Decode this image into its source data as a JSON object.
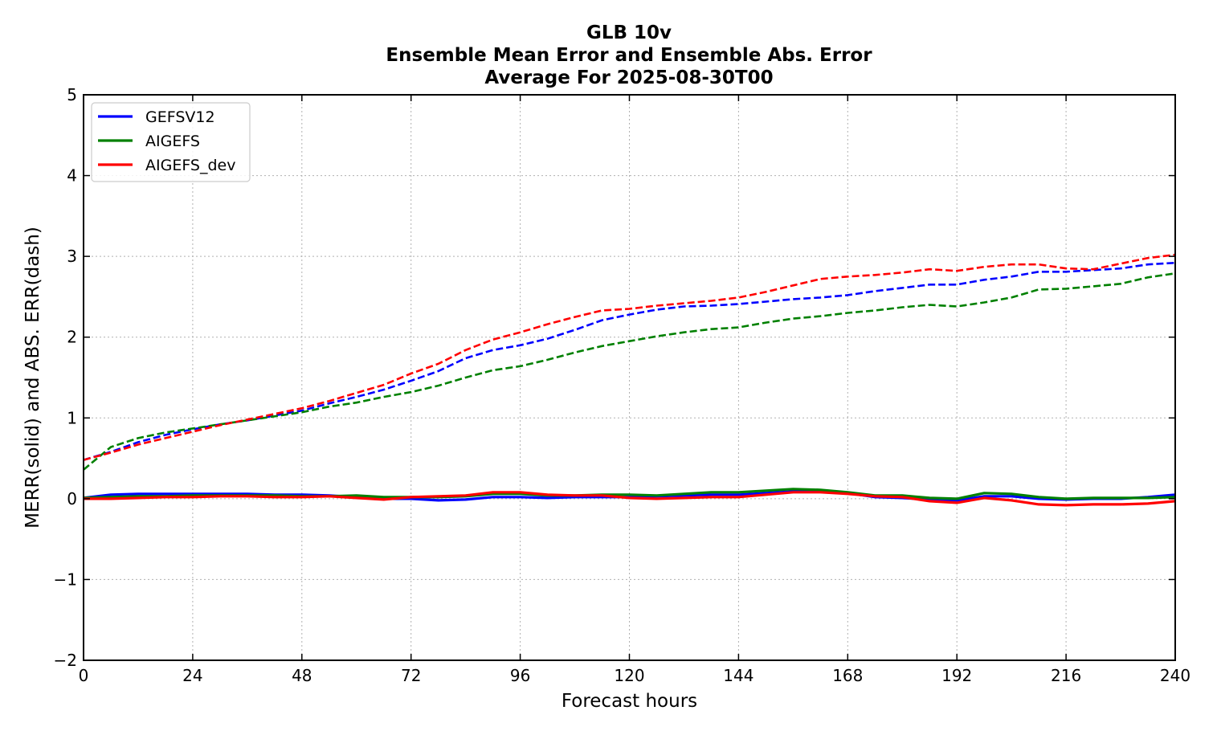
{
  "chart_data": {
    "type": "line",
    "title": [
      "GLB 10v",
      "Ensemble Mean Error and Ensemble Abs. Error",
      "Average For 2025-08-30T00"
    ],
    "xlabel": "Forecast hours",
    "ylabel": "MERR(solid) and ABS. ERR(dash)",
    "xlim": [
      0,
      240
    ],
    "ylim": [
      -2,
      5
    ],
    "xticks": [
      0,
      24,
      48,
      72,
      96,
      120,
      144,
      168,
      192,
      216,
      240
    ],
    "yticks": [
      -2,
      -1,
      0,
      1,
      2,
      3,
      4,
      5
    ],
    "ytick_labels": [
      "−2",
      "−1",
      "0",
      "1",
      "2",
      "3",
      "4",
      "5"
    ],
    "grid": true,
    "legend_position": "top-left",
    "x": [
      0,
      6,
      12,
      18,
      24,
      30,
      36,
      42,
      48,
      54,
      60,
      66,
      72,
      78,
      84,
      90,
      96,
      102,
      108,
      114,
      120,
      126,
      132,
      138,
      144,
      150,
      156,
      162,
      168,
      174,
      180,
      186,
      192,
      198,
      204,
      210,
      216,
      222,
      228,
      234,
      240
    ],
    "series": [
      {
        "name": "GEFSV12",
        "color": "#0000ff",
        "merr": [
          0.01,
          0.05,
          0.06,
          0.06,
          0.06,
          0.06,
          0.06,
          0.05,
          0.05,
          0.04,
          0.02,
          0.0,
          0.0,
          -0.02,
          -0.01,
          0.02,
          0.02,
          0.01,
          0.02,
          0.02,
          0.02,
          0.03,
          0.04,
          0.05,
          0.05,
          0.07,
          0.09,
          0.09,
          0.07,
          0.02,
          0.01,
          -0.01,
          -0.02,
          0.03,
          0.03,
          0.0,
          -0.01,
          0.0,
          0.0,
          0.02,
          0.05
        ],
        "abs_err": [
          0.48,
          0.58,
          0.7,
          0.79,
          0.86,
          0.92,
          0.97,
          1.03,
          1.09,
          1.18,
          1.26,
          1.35,
          1.46,
          1.58,
          1.74,
          1.84,
          1.9,
          1.98,
          2.09,
          2.21,
          2.28,
          2.34,
          2.38,
          2.39,
          2.41,
          2.44,
          2.47,
          2.49,
          2.52,
          2.57,
          2.61,
          2.65,
          2.65,
          2.71,
          2.75,
          2.81,
          2.81,
          2.83,
          2.85,
          2.9,
          2.92
        ]
      },
      {
        "name": "AIGEFS",
        "color": "#008000",
        "merr": [
          0.01,
          0.02,
          0.03,
          0.03,
          0.04,
          0.04,
          0.04,
          0.04,
          0.03,
          0.03,
          0.04,
          0.02,
          0.02,
          0.02,
          0.03,
          0.06,
          0.06,
          0.04,
          0.04,
          0.05,
          0.05,
          0.04,
          0.06,
          0.08,
          0.08,
          0.1,
          0.12,
          0.11,
          0.08,
          0.04,
          0.04,
          0.01,
          0.0,
          0.07,
          0.06,
          0.02,
          0.0,
          0.01,
          0.01,
          0.01,
          0.02
        ],
        "abs_err": [
          0.36,
          0.64,
          0.75,
          0.82,
          0.87,
          0.92,
          0.97,
          1.02,
          1.07,
          1.14,
          1.19,
          1.26,
          1.32,
          1.4,
          1.5,
          1.59,
          1.64,
          1.72,
          1.81,
          1.89,
          1.95,
          2.01,
          2.06,
          2.1,
          2.12,
          2.18,
          2.23,
          2.26,
          2.3,
          2.33,
          2.37,
          2.4,
          2.38,
          2.43,
          2.49,
          2.59,
          2.6,
          2.63,
          2.66,
          2.74,
          2.79
        ]
      },
      {
        "name": "AIGEFS_dev",
        "color": "#ff0000",
        "merr": [
          0.0,
          0.0,
          0.01,
          0.02,
          0.02,
          0.03,
          0.03,
          0.02,
          0.02,
          0.03,
          0.01,
          -0.01,
          0.02,
          0.03,
          0.04,
          0.08,
          0.08,
          0.05,
          0.04,
          0.04,
          0.01,
          0.0,
          0.01,
          0.02,
          0.02,
          0.05,
          0.08,
          0.08,
          0.06,
          0.03,
          0.02,
          -0.03,
          -0.05,
          0.01,
          -0.02,
          -0.07,
          -0.08,
          -0.07,
          -0.07,
          -0.06,
          -0.03
        ],
        "abs_err": [
          0.48,
          0.57,
          0.67,
          0.75,
          0.83,
          0.91,
          0.98,
          1.05,
          1.12,
          1.21,
          1.31,
          1.41,
          1.55,
          1.67,
          1.84,
          1.97,
          2.06,
          2.16,
          2.25,
          2.33,
          2.35,
          2.39,
          2.42,
          2.45,
          2.49,
          2.56,
          2.64,
          2.72,
          2.75,
          2.77,
          2.8,
          2.84,
          2.82,
          2.87,
          2.9,
          2.9,
          2.85,
          2.84,
          2.91,
          2.98,
          3.02
        ]
      }
    ]
  }
}
